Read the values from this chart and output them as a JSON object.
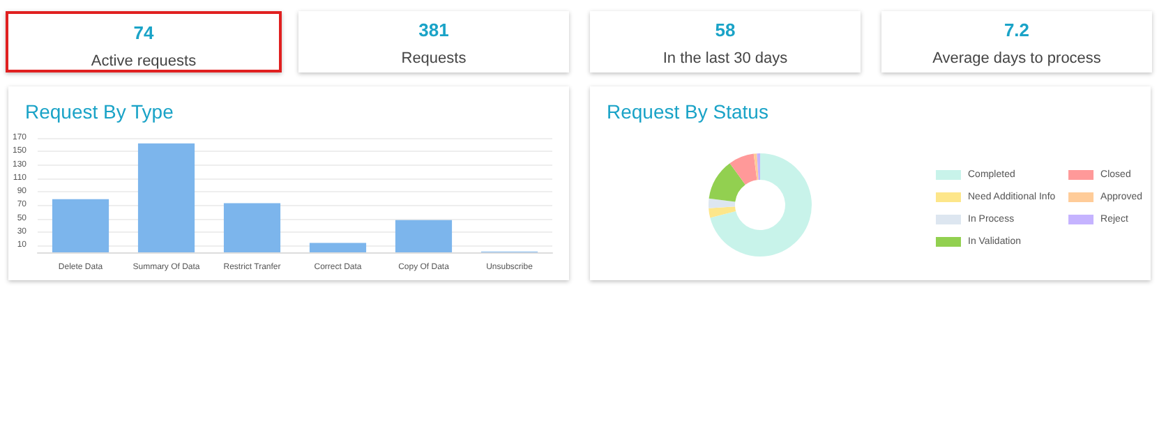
{
  "chart_data": [
    {
      "type": "other",
      "title": "74",
      "subtitle": "Active requests"
    },
    {
      "type": "other",
      "title": "381",
      "subtitle": "Requests"
    },
    {
      "type": "other",
      "title": "58",
      "subtitle": "In the last 30 days"
    },
    {
      "type": "other",
      "title": "7.2",
      "subtitle": "Average days to process"
    },
    {
      "type": "bar",
      "title": "Request By Type",
      "categories": [
        "Delete Data",
        "Summary Of Data",
        "Restrict Tranfer",
        "Correct Data",
        "Copy Of Data",
        "Unsubscribe"
      ],
      "values": [
        79,
        162,
        73,
        14,
        48,
        1
      ],
      "color": "#7cb5ec",
      "ylim": [
        0,
        170
      ],
      "yticks": [
        10,
        30,
        50,
        70,
        90,
        110,
        130,
        150,
        170
      ],
      "grid": "y",
      "legend": false
    },
    {
      "type": "donut",
      "title": "Request By Status",
      "categories": [
        "Completed",
        "Need Additional Info",
        "In Process",
        "In Validation",
        "Closed",
        "Approved",
        "Reject"
      ],
      "values": [
        71,
        3,
        3,
        13,
        8,
        1,
        1
      ],
      "colors": [
        "#c8f3ea",
        "#fde68a",
        "#dde6f0",
        "#92d050",
        "#ff9999",
        "#ffcc99",
        "#c5b3ff"
      ],
      "legend": "right"
    }
  ]
}
